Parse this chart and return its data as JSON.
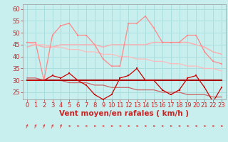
{
  "xlabel": "Vent moyen/en rafales ( km/h )",
  "bg_color": "#c8eeee",
  "grid_color": "#aadddd",
  "ylim": [
    22,
    62
  ],
  "xlim": [
    -0.5,
    23.5
  ],
  "yticks": [
    25,
    30,
    35,
    40,
    45,
    50,
    55,
    60
  ],
  "xticks": [
    0,
    1,
    2,
    3,
    4,
    5,
    6,
    7,
    8,
    9,
    10,
    11,
    12,
    13,
    14,
    15,
    16,
    17,
    18,
    19,
    20,
    21,
    22,
    23
  ],
  "hours": [
    0,
    1,
    2,
    3,
    4,
    5,
    6,
    7,
    8,
    9,
    10,
    11,
    12,
    13,
    14,
    15,
    16,
    17,
    18,
    19,
    20,
    21,
    22,
    23
  ],
  "line_gust": [
    46,
    46,
    30,
    49,
    53,
    54,
    49,
    49,
    45,
    39,
    36,
    36,
    54,
    54,
    57,
    52,
    46,
    46,
    46,
    49,
    49,
    42,
    38,
    37
  ],
  "line_avg": [
    44,
    45,
    44,
    44,
    45,
    45,
    45,
    45,
    45,
    44,
    45,
    45,
    45,
    45,
    45,
    46,
    46,
    46,
    46,
    46,
    45,
    44,
    42,
    41
  ],
  "line_trend_gust": [
    46,
    45,
    45,
    44,
    44,
    43,
    43,
    42,
    42,
    41,
    41,
    40,
    40,
    39,
    39,
    38,
    38,
    37,
    37,
    36,
    36,
    35,
    35,
    34
  ],
  "line_wind": [
    30,
    30,
    30,
    32,
    31,
    33,
    30,
    28,
    24,
    22,
    24,
    31,
    32,
    35,
    30,
    30,
    26,
    24,
    26,
    31,
    32,
    27,
    21,
    27
  ],
  "line_avg_wind": [
    30,
    30,
    30,
    30,
    30,
    30,
    30,
    30,
    30,
    30,
    30,
    30,
    30,
    30,
    30,
    30,
    30,
    30,
    30,
    30,
    30,
    30,
    30,
    30
  ],
  "line_trend_wind": [
    31,
    31,
    30,
    30,
    30,
    29,
    29,
    29,
    28,
    28,
    27,
    27,
    27,
    26,
    26,
    26,
    25,
    25,
    25,
    24,
    24,
    24,
    23,
    23
  ],
  "color_gust": "#ff8888",
  "color_avg": "#ffaaaa",
  "color_trend_gust": "#ffbbbb",
  "color_wind": "#cc0000",
  "color_avg_wind": "#aa0000",
  "color_trend_wind": "#cc6666",
  "wind_arrows_ne": [
    0,
    1,
    2,
    3,
    4
  ],
  "wind_arrows_e": [
    5,
    6,
    7,
    8,
    9,
    10,
    11,
    12,
    13,
    14,
    15,
    16,
    17,
    18,
    19,
    20,
    21,
    22,
    23
  ],
  "tick_fontsize": 6,
  "label_fontsize": 7.5
}
